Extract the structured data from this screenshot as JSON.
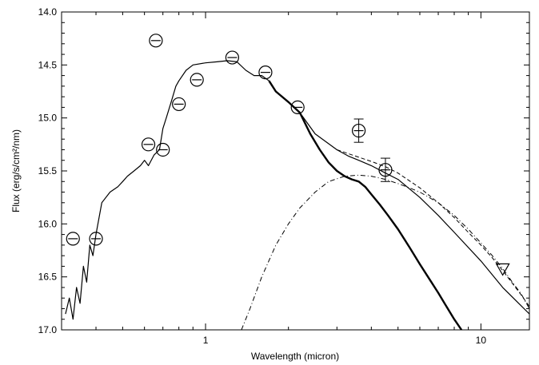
{
  "chart_data": {
    "type": "scatter",
    "title": "",
    "xlabel": "Wavelength (micron)",
    "ylabel": "Flux (erg/s/cm²/nm)",
    "xscale": "log",
    "xlim": [
      0.3,
      15
    ],
    "ylim": [
      17.0,
      14.0
    ],
    "y_inverted": true,
    "x_major_ticks": [
      1,
      10
    ],
    "x_tick_labels": [
      "1",
      "10"
    ],
    "y_major_ticks": [
      14.0,
      14.5,
      15.0,
      15.5,
      16.0,
      16.5,
      17.0
    ],
    "y_tick_labels": [
      "14.0",
      "14.5",
      "15.0",
      "15.5",
      "16.0",
      "16.5",
      "17.0"
    ],
    "grid": false,
    "legend": "none",
    "series": [
      {
        "style": "thin-line",
        "x": [
          0.31,
          0.32,
          0.33,
          0.34,
          0.35,
          0.36,
          0.37,
          0.38,
          0.39,
          0.4,
          0.42,
          0.45,
          0.48,
          0.5,
          0.52,
          0.55,
          0.58,
          0.6,
          0.62,
          0.65,
          0.68,
          0.7,
          0.72,
          0.75,
          0.78,
          0.8,
          0.85,
          0.9,
          1.0,
          1.1,
          1.2,
          1.3,
          1.4,
          1.5,
          1.6,
          1.7,
          1.8,
          2.0,
          2.2,
          2.5,
          3.0,
          3.3,
          3.6,
          4.0,
          4.5,
          5.0,
          6.0,
          7.0,
          8.0,
          10.0,
          12.0,
          15.0
        ],
        "y": [
          16.85,
          16.7,
          16.9,
          16.6,
          16.75,
          16.4,
          16.55,
          16.2,
          16.3,
          16.1,
          15.8,
          15.7,
          15.65,
          15.6,
          15.55,
          15.5,
          15.45,
          15.4,
          15.45,
          15.35,
          15.3,
          15.1,
          15.0,
          14.85,
          14.7,
          14.65,
          14.55,
          14.5,
          14.48,
          14.47,
          14.46,
          14.47,
          14.55,
          14.6,
          14.6,
          14.65,
          14.75,
          14.85,
          14.95,
          15.15,
          15.3,
          15.36,
          15.4,
          15.45,
          15.52,
          15.58,
          15.75,
          15.92,
          16.08,
          16.35,
          16.6,
          16.85
        ]
      },
      {
        "style": "thick-line",
        "x": [
          1.7,
          1.8,
          2.0,
          2.2,
          2.4,
          2.6,
          2.8,
          3.0,
          3.2,
          3.4,
          3.6,
          3.8,
          4.0,
          4.3,
          4.6,
          5.0,
          5.5,
          6.0,
          6.5,
          7.0,
          7.5,
          8.0,
          8.5
        ],
        "y": [
          14.65,
          14.75,
          14.85,
          14.95,
          15.15,
          15.3,
          15.42,
          15.5,
          15.55,
          15.58,
          15.6,
          15.65,
          15.72,
          15.82,
          15.92,
          16.05,
          16.22,
          16.38,
          16.52,
          16.65,
          16.78,
          16.9,
          17.0
        ]
      },
      {
        "style": "dash-dot",
        "x": [
          1.35,
          1.45,
          1.6,
          1.8,
          2.0,
          2.2,
          2.5,
          2.8,
          3.2,
          3.6,
          4.0,
          4.5,
          5.0,
          5.5,
          6.0,
          7.0,
          8.0,
          9.0,
          10.0,
          11.0,
          12.0,
          13.0,
          14.0,
          15.0
        ],
        "y": [
          17.0,
          16.8,
          16.5,
          16.2,
          16.0,
          15.85,
          15.7,
          15.6,
          15.55,
          15.54,
          15.55,
          15.58,
          15.62,
          15.66,
          15.7,
          15.8,
          15.92,
          16.05,
          16.18,
          16.3,
          16.42,
          16.55,
          16.66,
          16.8
        ]
      },
      {
        "style": "dashed",
        "x": [
          3.0,
          3.5,
          4.0,
          4.5,
          5.0,
          6.0,
          7.0,
          8.0,
          9.0,
          10.0,
          11.0,
          12.0,
          13.0,
          14.0,
          15.0
        ],
        "y": [
          15.3,
          15.36,
          15.41,
          15.46,
          15.52,
          15.66,
          15.8,
          15.94,
          16.08,
          16.2,
          16.32,
          16.44,
          16.56,
          16.67,
          16.78
        ]
      }
    ],
    "points": [
      {
        "x": 0.33,
        "y": 16.14,
        "yerr": 0.05,
        "marker": "circle"
      },
      {
        "x": 0.4,
        "y": 16.14,
        "yerr": 0.03,
        "marker": "circle"
      },
      {
        "x": 0.62,
        "y": 15.25,
        "yerr": 0.03,
        "marker": "circle"
      },
      {
        "x": 0.66,
        "y": 14.27,
        "yerr": 0.03,
        "marker": "circle"
      },
      {
        "x": 0.7,
        "y": 15.3,
        "yerr": 0.03,
        "marker": "circle"
      },
      {
        "x": 0.8,
        "y": 14.87,
        "yerr": 0.03,
        "marker": "circle"
      },
      {
        "x": 0.93,
        "y": 14.64,
        "yerr": 0.03,
        "marker": "circle"
      },
      {
        "x": 1.25,
        "y": 14.43,
        "yerr": 0.03,
        "marker": "circle"
      },
      {
        "x": 1.65,
        "y": 14.57,
        "yerr": 0.03,
        "marker": "circle"
      },
      {
        "x": 2.16,
        "y": 14.9,
        "yerr": 0.03,
        "marker": "circle"
      },
      {
        "x": 3.6,
        "y": 15.12,
        "yerr": 0.11,
        "marker": "circle"
      },
      {
        "x": 4.5,
        "y": 15.49,
        "yerr": 0.11,
        "marker": "circle"
      },
      {
        "x": 12.0,
        "y": 16.43,
        "yerr": 0,
        "marker": "triangle-down-upper-limit"
      }
    ]
  }
}
